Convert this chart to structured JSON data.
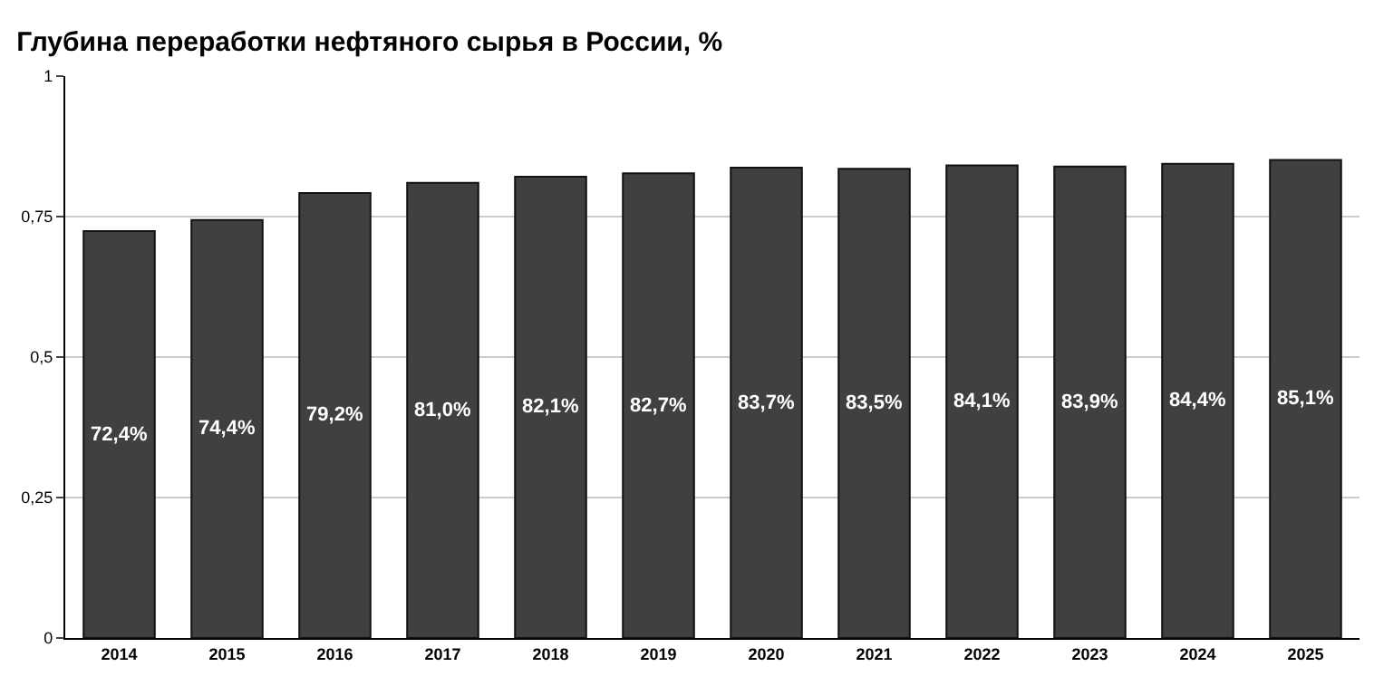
{
  "chart_data": {
    "type": "bar",
    "title": "Глубина переработки нефтяного сырья в России, %",
    "categories": [
      "2014",
      "2015",
      "2016",
      "2017",
      "2018",
      "2019",
      "2020",
      "2021",
      "2022",
      "2023",
      "2024",
      "2025"
    ],
    "values": [
      0.724,
      0.744,
      0.792,
      0.81,
      0.821,
      0.827,
      0.837,
      0.835,
      0.841,
      0.839,
      0.844,
      0.851
    ],
    "value_labels": [
      "72,4%",
      "74,4%",
      "79,2%",
      "81,0%",
      "82,1%",
      "82,7%",
      "83,7%",
      "83,5%",
      "84,1%",
      "83,9%",
      "84,4%",
      "85,1%"
    ],
    "color": "#404040",
    "ylim": [
      0,
      1
    ],
    "yticks": [
      {
        "value": 0,
        "label": "0"
      },
      {
        "value": 0.25,
        "label": "0,25"
      },
      {
        "value": 0.5,
        "label": "0,5"
      },
      {
        "value": 0.75,
        "label": "0,75"
      },
      {
        "value": 1,
        "label": "1"
      }
    ],
    "grid": "y"
  }
}
